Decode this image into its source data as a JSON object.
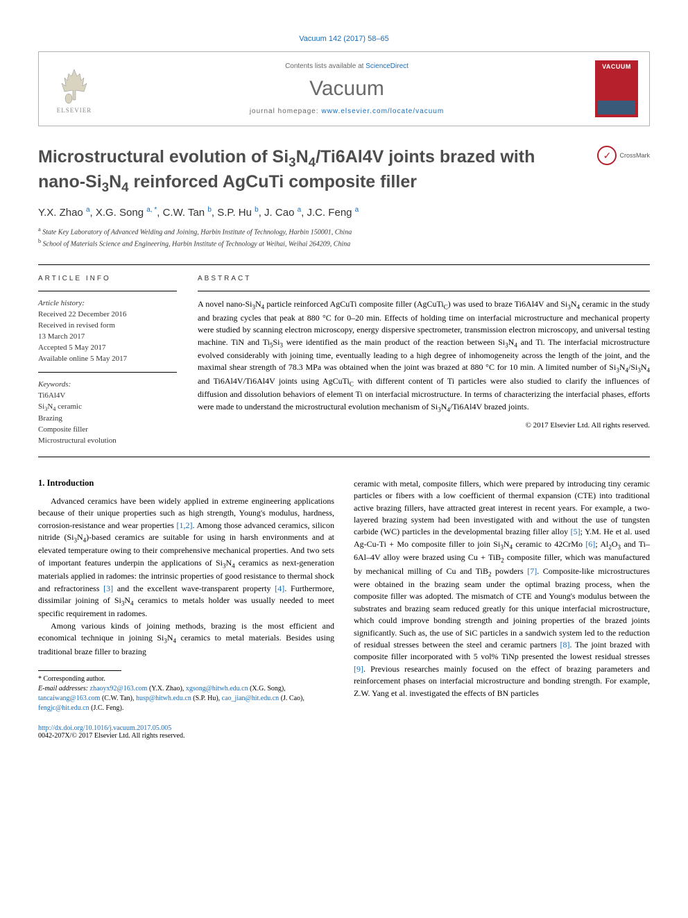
{
  "journal_ref": "Vacuum 142 (2017) 58–65",
  "header": {
    "contents_prefix": "Contents lists available at ",
    "contents_link": "ScienceDirect",
    "journal_name": "Vacuum",
    "homepage_prefix": "journal homepage: ",
    "homepage_link": "www.elsevier.com/locate/vacuum",
    "publisher": "ELSEVIER",
    "cover_title": "VACUUM"
  },
  "crossmark_label": "CrossMark",
  "title_html": "Microstructural evolution of Si<sub>3</sub>N<sub>4</sub>/Ti6Al4V joints brazed with nano-Si<sub>3</sub>N<sub>4</sub> reinforced AgCuTi composite filler",
  "authors_html": "Y.X. Zhao <sup>a</sup>, X.G. Song <sup>a, *</sup>, C.W. Tan <sup>b</sup>, S.P. Hu <sup>b</sup>, J. Cao <sup>a</sup>, J.C. Feng <sup>a</sup>",
  "affiliations": [
    {
      "sup": "a",
      "text": "State Key Laboratory of Advanced Welding and Joining, Harbin Institute of Technology, Harbin 150001, China"
    },
    {
      "sup": "b",
      "text": "School of Materials Science and Engineering, Harbin Institute of Technology at Weihai, Weihai 264209, China"
    }
  ],
  "article_info": {
    "label": "ARTICLE INFO",
    "history_head": "Article history:",
    "history": [
      "Received 22 December 2016",
      "Received in revised form",
      "13 March 2017",
      "Accepted 5 May 2017",
      "Available online 5 May 2017"
    ],
    "keywords_head": "Keywords:",
    "keywords_html": [
      "Ti6Al4V",
      "Si<sub>3</sub>N<sub>4</sub> ceramic",
      "Brazing",
      "Composite filler",
      "Microstructural evolution"
    ]
  },
  "abstract": {
    "label": "ABSTRACT",
    "text_html": "A novel nano-Si<sub>3</sub>N<sub>4</sub> particle reinforced AgCuTi composite filler (AgCuTi<sub>C</sub>) was used to braze Ti6Al4V and Si<sub>3</sub>N<sub>4</sub> ceramic in the study and brazing cycles that peak at 880 °C for 0–20 min. Effects of holding time on interfacial microstructure and mechanical property were studied by scanning electron microscopy, energy dispersive spectrometer, transmission electron microscopy, and universal testing machine. TiN and Ti<sub>5</sub>Si<sub>3</sub> were identified as the main product of the reaction between Si<sub>3</sub>N<sub>4</sub> and Ti. The interfacial microstructure evolved considerably with joining time, eventually leading to a high degree of inhomogeneity across the length of the joint, and the maximal shear strength of 78.3 MPa was obtained when the joint was brazed at 880 °C for 10 min. A limited number of Si<sub>3</sub>N<sub>4</sub>/Si<sub>3</sub>N<sub>4</sub> and Ti6Al4V/Ti6Al4V joints using AgCuTi<sub>C</sub> with different content of Ti particles were also studied to clarify the influences of diffusion and dissolution behaviors of element Ti on interfacial microstructure. In terms of characterizing the interfacial phases, efforts were made to understand the microstructural evolution mechanism of Si<sub>3</sub>N<sub>4</sub>/Ti6Al4V brazed joints.",
    "copyright": "© 2017 Elsevier Ltd. All rights reserved."
  },
  "intro": {
    "heading": "1. Introduction",
    "col1_html": "<p>Advanced ceramics have been widely applied in extreme engineering applications because of their unique properties such as high strength, Young's modulus, hardness, corrosion-resistance and wear properties <a class='ref'>[1,2]</a>. Among those advanced ceramics, silicon nitride (Si<sub>3</sub>N<sub>4</sub>)-based ceramics are suitable for using in harsh environments and at elevated temperature owing to their comprehensive mechanical properties. And two sets of important features underpin the applications of Si<sub>3</sub>N<sub>4</sub> ceramics as next-generation materials applied in radomes: the intrinsic properties of good resistance to thermal shock and refractoriness <a class='ref'>[3]</a> and the excellent wave-transparent property <a class='ref'>[4]</a>. Furthermore, dissimilar joining of Si<sub>3</sub>N<sub>4</sub> ceramics to metals holder was usually needed to meet specific requirement in radomes.</p><p>Among various kinds of joining methods, brazing is the most efficient and economical technique in joining Si<sub>3</sub>N<sub>4</sub> ceramics to metal materials. Besides using traditional braze filler to brazing</p>",
    "col2_html": "<p style='text-indent:0'>ceramic with metal, composite fillers, which were prepared by introducing tiny ceramic particles or fibers with a low coefficient of thermal expansion (CTE) into traditional active brazing fillers, have attracted great interest in recent years. For example, a two-layered brazing system had been investigated with and without the use of tungsten carbide (WC) particles in the developmental brazing filler alloy <a class='ref'>[5]</a>; Y.M. He et al. used Ag-Cu-Ti + Mo composite filler to join Si<sub>3</sub>N<sub>4</sub> ceramic to 42CrMo <a class='ref'>[6]</a>; Al<sub>2</sub>O<sub>3</sub> and Ti–6Al–4V alloy were brazed using Cu + TiB<sub>2</sub> composite filler, which was manufactured by mechanical milling of Cu and TiB<sub>2</sub> powders <a class='ref'>[7]</a>. Composite-like microstructures were obtained in the brazing seam under the optimal brazing process, when the composite filler was adopted. The mismatch of CTE and Young's modulus between the substrates and brazing seam reduced greatly for this unique interfacial microstructure, which could improve bonding strength and joining properties of the brazed joints significantly. Such as, the use of SiC particles in a sandwich system led to the reduction of residual stresses between the steel and ceramic partners <a class='ref'>[8]</a>. The joint brazed with composite filler incorporated with 5 vol% TiNp presented the lowest residual stresses <a class='ref'>[9]</a>. Previous researches mainly focused on the effect of brazing parameters and reinforcement phases on interfacial microstructure and bonding strength. For example, Z.W. Yang et al. investigated the effects of BN particles</p>"
  },
  "footnotes": {
    "corresponding": "* Corresponding author.",
    "emails_label": "E-mail addresses:",
    "emails_html": "<a>zhaoyx92@163.com</a> (Y.X. Zhao), <a>xgsong@hitwh.edu.cn</a> (X.G. Song), <a>tancaiwang@163.com</a> (C.W. Tan), <a>husp@hitwh.edu.cn</a> (S.P. Hu), <a>cao_jian@hit.edu.cn</a> (J. Cao), <a>fengjc@hit.edu.cn</a> (J.C. Feng)."
  },
  "doi": {
    "link": "http://dx.doi.org/10.1016/j.vacuum.2017.05.005",
    "issn_line": "0042-207X/© 2017 Elsevier Ltd. All rights reserved."
  },
  "colors": {
    "link": "#1a6bb5",
    "title": "#4d4d4d",
    "cover_bg": "#b5202c"
  }
}
